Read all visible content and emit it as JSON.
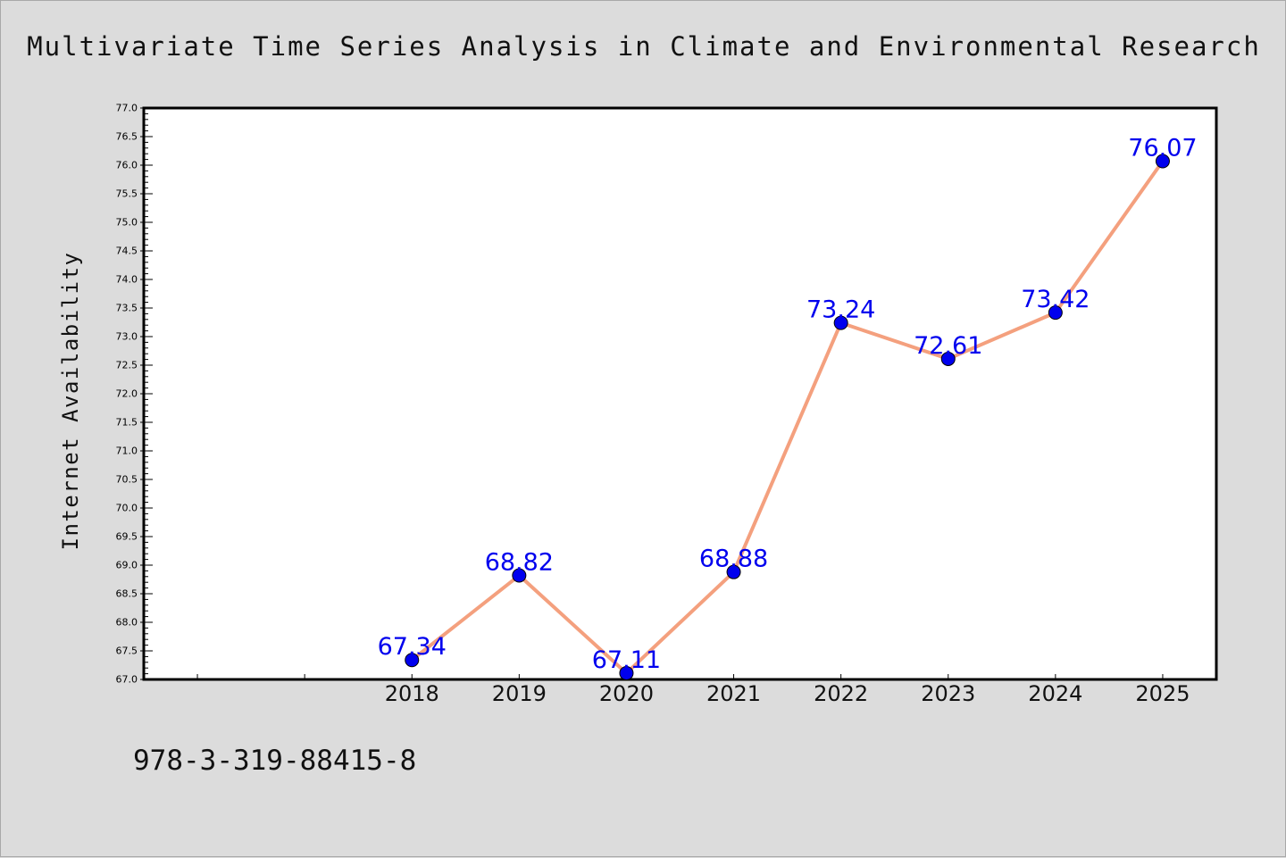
{
  "chart_data": {
    "type": "line",
    "title": "Multivariate Time Series Analysis in Climate and Environmental Research",
    "xlabel": "",
    "ylabel": "Internet Availability",
    "x_tick_labels": [
      "2018",
      "2019",
      "2020",
      "2021",
      "2022",
      "2023",
      "2024",
      "2025"
    ],
    "x": [
      2018,
      2019,
      2020,
      2021,
      2022,
      2023,
      2024,
      2025
    ],
    "xlim": [
      2015.5,
      2025.5
    ],
    "ylim": [
      67.0,
      77.0
    ],
    "y_ticks": [
      "67.0",
      "67.5",
      "68.0",
      "68.5",
      "69.0",
      "69.5",
      "70.0",
      "70.5",
      "71.0",
      "71.5",
      "72.0",
      "72.5",
      "73.0",
      "73.5",
      "74.0",
      "74.5",
      "75.0",
      "75.5",
      "76.0",
      "76.5",
      "77.0"
    ],
    "series": [
      {
        "values": [
          67.34,
          68.82,
          67.11,
          68.88,
          73.24,
          72.61,
          73.42,
          76.07
        ],
        "data_labels": [
          "67.34",
          "68.82",
          "67.11",
          "68.88",
          "73.24",
          "72.61",
          "73.42",
          "76.07"
        ],
        "line_color": "#f4a07e",
        "marker_color": "#0000ee",
        "label_color": "#0000ee"
      }
    ],
    "grid": false,
    "legend": "none"
  },
  "footer": {
    "isbn": "978-3-319-88415-8"
  },
  "colors": {
    "background": "#dcdcdc",
    "plot_background": "#ffffff",
    "axis": "#000000"
  }
}
